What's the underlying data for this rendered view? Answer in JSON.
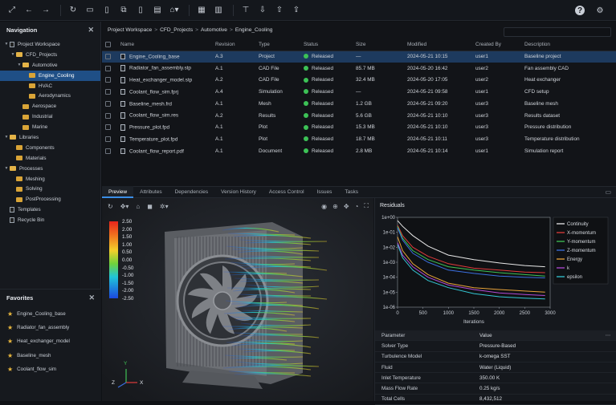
{
  "toolbar": {
    "left_icons": [
      "expand-icon",
      "back-icon",
      "forward-icon",
      "refresh-icon",
      "folder-icon",
      "file-icon",
      "copy-icon",
      "file-add-icon",
      "paste-icon",
      "tag-icon",
      "grid-icon",
      "table-icon",
      "filter-icon",
      "import-icon",
      "export-icon",
      "share-icon"
    ],
    "right_icons": [
      "help-icon",
      "settings-icon"
    ]
  },
  "navigation": {
    "title": "Navigation",
    "tree": [
      {
        "label": "Project Workspace",
        "depth": 0,
        "type": "file",
        "expanded": true
      },
      {
        "label": "CFD_Projects",
        "depth": 1,
        "type": "folder",
        "expanded": true
      },
      {
        "label": "Automotive",
        "depth": 2,
        "type": "folder",
        "expanded": true
      },
      {
        "label": "Engine_Cooling",
        "depth": 3,
        "type": "folder",
        "selected": true
      },
      {
        "label": "HVAC",
        "depth": 3,
        "type": "folder"
      },
      {
        "label": "Aerodynamics",
        "depth": 3,
        "type": "folder"
      },
      {
        "label": "Aerospace",
        "depth": 2,
        "type": "folder"
      },
      {
        "label": "Industrial",
        "depth": 2,
        "type": "folder"
      },
      {
        "label": "Marine",
        "depth": 2,
        "type": "folder"
      },
      {
        "label": "Libraries",
        "depth": 0,
        "type": "folder",
        "expanded": true
      },
      {
        "label": "Components",
        "depth": 1,
        "type": "folder"
      },
      {
        "label": "Materials",
        "depth": 1,
        "type": "folder"
      },
      {
        "label": "Processes",
        "depth": 0,
        "type": "folder",
        "expanded": true
      },
      {
        "label": "Meshing",
        "depth": 1,
        "type": "folder"
      },
      {
        "label": "Solving",
        "depth": 1,
        "type": "folder"
      },
      {
        "label": "PostProcessing",
        "depth": 1,
        "type": "folder"
      },
      {
        "label": "Templates",
        "depth": 0,
        "type": "file"
      },
      {
        "label": "Recycle Bin",
        "depth": 0,
        "type": "file"
      }
    ]
  },
  "favorites": {
    "title": "Favorites",
    "items": [
      "Engine_Cooling_base",
      "Radiator_fan_assembly",
      "Heat_exchanger_model",
      "Baseline_mesh",
      "Coolant_flow_sim"
    ]
  },
  "breadcrumb": [
    "Project Workspace",
    "CFD_Projects",
    "Automotive",
    "Engine_Cooling"
  ],
  "table": {
    "headers": [
      "Name",
      "Revision",
      "Type",
      "Status",
      "Size",
      "Modified",
      "Created By",
      "Description"
    ],
    "rows": [
      {
        "name": "Engine_Cooling_base",
        "rev": "A.3",
        "type": "Project",
        "status": "Released",
        "size": "—",
        "modified": "2024-05-21 10:15",
        "by": "user1",
        "desc": "Baseline project",
        "selected": true
      },
      {
        "name": "Radiator_fan_assembly.stp",
        "rev": "A.1",
        "type": "CAD File",
        "status": "Released",
        "size": "85.7 MB",
        "modified": "2024-05-20 16:42",
        "by": "user2",
        "desc": "Fan assembly CAD"
      },
      {
        "name": "Heat_exchanger_model.stp",
        "rev": "A.2",
        "type": "CAD File",
        "status": "Released",
        "size": "32.4 MB",
        "modified": "2024-05-20 17:05",
        "by": "user2",
        "desc": "Heat exchanger"
      },
      {
        "name": "Coolant_flow_sim.fprj",
        "rev": "A.4",
        "type": "Simulation",
        "status": "Released",
        "size": "—",
        "modified": "2024-05-21 09:58",
        "by": "user1",
        "desc": "CFD setup"
      },
      {
        "name": "Baseline_mesh.frd",
        "rev": "A.1",
        "type": "Mesh",
        "status": "Released",
        "size": "1.2 GB",
        "modified": "2024-05-21 09:20",
        "by": "user3",
        "desc": "Baseline mesh"
      },
      {
        "name": "Coolant_flow_sim.res",
        "rev": "A.2",
        "type": "Results",
        "status": "Released",
        "size": "5.6 GB",
        "modified": "2024-05-21 10:10",
        "by": "user3",
        "desc": "Results dataset"
      },
      {
        "name": "Pressure_plot.fpd",
        "rev": "A.1",
        "type": "Plot",
        "status": "Released",
        "size": "15.3 MB",
        "modified": "2024-05-21 10:10",
        "by": "user3",
        "desc": "Pressure distribution"
      },
      {
        "name": "Temperature_plot.fpd",
        "rev": "A.1",
        "type": "Plot",
        "status": "Released",
        "size": "18.7 MB",
        "modified": "2024-05-21 10:11",
        "by": "user3",
        "desc": "Temperature distribution"
      },
      {
        "name": "Coolant_flow_report.pdf",
        "rev": "A.1",
        "type": "Document",
        "status": "Released",
        "size": "2.8 MB",
        "modified": "2024-05-21 10:14",
        "by": "user1",
        "desc": "Simulation report"
      }
    ]
  },
  "tabs": [
    "Preview",
    "Attributes",
    "Dependencies",
    "Version History",
    "Access Control",
    "Issues",
    "Tasks"
  ],
  "viewer": {
    "legend": [
      "2.50",
      "2.00",
      "1.50",
      "1.00",
      "0.50",
      "0.00",
      "-0.50",
      "-1.00",
      "-1.50",
      "-2.00",
      "-2.50"
    ],
    "axes": {
      "x": "X",
      "y": "Y",
      "z": "Z"
    },
    "colors": {
      "high": "#e8241b",
      "low": "#1b48e0"
    }
  },
  "residuals": {
    "title": "Residuals",
    "xlabel": "Iterations"
  },
  "chart_data": {
    "type": "line",
    "title": "Residuals",
    "xlabel": "Iterations",
    "ylabel": "",
    "yscale": "log",
    "xlim": [
      0,
      3000
    ],
    "ylim": [
      1e-06,
      1
    ],
    "xticks": [
      "0",
      "500",
      "1000",
      "1500",
      "2000",
      "2500",
      "3000"
    ],
    "yticks": [
      "1e+00",
      "1e-01",
      "1e-02",
      "1e-03",
      "1e-04",
      "1e-05",
      "1e-06"
    ],
    "x": [
      0,
      100,
      300,
      600,
      1000,
      1500,
      2000,
      2500,
      2900
    ],
    "series": [
      {
        "name": "Continuity",
        "color": "#e8e8e8",
        "values": [
          0.6,
          0.25,
          0.06,
          0.012,
          0.003,
          0.0015,
          0.0009,
          0.0006,
          0.0005
        ]
      },
      {
        "name": "X-momentum",
        "color": "#e03b3b",
        "values": [
          0.3,
          0.06,
          0.01,
          0.0025,
          0.0008,
          0.0004,
          0.0003,
          0.00022,
          0.0002
        ]
      },
      {
        "name": "Y-momentum",
        "color": "#3fc255",
        "values": [
          0.25,
          0.04,
          0.006,
          0.0015,
          0.0005,
          0.0003,
          0.0002,
          0.00015,
          0.00012
        ]
      },
      {
        "name": "Z-momentum",
        "color": "#3b6fe0",
        "values": [
          0.2,
          0.03,
          0.004,
          0.001,
          0.0003,
          0.00018,
          0.00012,
          0.0001,
          9e-05
        ]
      },
      {
        "name": "Energy",
        "color": "#e8a33a",
        "values": [
          0.05,
          0.006,
          0.0008,
          0.00015,
          4e-05,
          2e-05,
          1.5e-05,
          1.2e-05,
          1e-05
        ]
      },
      {
        "name": "k",
        "color": "#b24ad6",
        "values": [
          0.02,
          0.003,
          0.0005,
          0.0001,
          3e-05,
          1.5e-05,
          9e-06,
          7e-06,
          6e-06
        ]
      },
      {
        "name": "epsilon",
        "color": "#34c7d4",
        "values": [
          0.015,
          0.002,
          0.0003,
          6e-05,
          2e-05,
          8e-06,
          5e-06,
          4e-06,
          3.5e-06
        ]
      }
    ],
    "legend": "top-right",
    "grid": false
  },
  "parameters": {
    "headers": [
      "Parameter",
      "Value"
    ],
    "rows": [
      [
        "Solver Type",
        "Pressure-Based"
      ],
      [
        "Turbulence Model",
        "k-omega SST"
      ],
      [
        "Fluid",
        "Water (Liquid)"
      ],
      [
        "Inlet Temperature",
        "350.00 K"
      ],
      [
        "Mass Flow Rate",
        "0.25 kg/s"
      ],
      [
        "Total Cells",
        "8,432,512"
      ]
    ]
  }
}
